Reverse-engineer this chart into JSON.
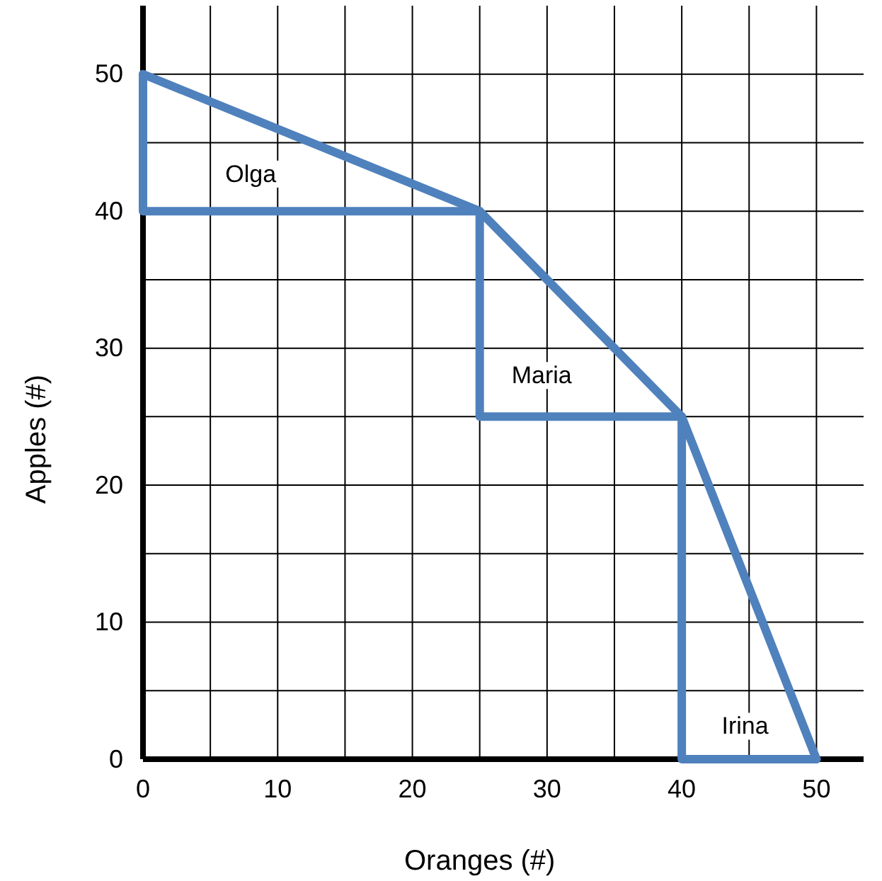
{
  "chart_data": {
    "type": "line",
    "xlabel": "Oranges (#)",
    "ylabel": "Apples (#)",
    "xlim": [
      0,
      53.5
    ],
    "ylim": [
      0,
      55
    ],
    "xticks": [
      0,
      {
        "value": 5,
        "label": null
      },
      10,
      {
        "value": 15,
        "label": null
      },
      20,
      {
        "value": 25,
        "label": null
      },
      30,
      {
        "value": 35,
        "label": null
      },
      40,
      {
        "value": 45,
        "label": null
      },
      50
    ],
    "yticks": [
      0,
      {
        "value": 5,
        "label": null
      },
      10,
      {
        "value": 15,
        "label": null
      },
      20,
      {
        "value": 25,
        "label": null
      },
      30,
      {
        "value": 35,
        "label": null
      },
      40,
      {
        "value": 45,
        "label": null
      },
      50
    ],
    "grid": true,
    "marker": "none",
    "line_style": "solid",
    "series": [
      {
        "color": "#4f81bd",
        "x": [
          0,
          25,
          40,
          50
        ],
        "values": [
          50,
          40,
          25,
          0
        ]
      },
      {
        "color": "#4f81bd",
        "x": [
          0,
          0,
          25
        ],
        "values": [
          50,
          40,
          40
        ]
      },
      {
        "color": "#4f81bd",
        "x": [
          25,
          25,
          40
        ],
        "values": [
          40,
          25,
          25
        ]
      },
      {
        "color": "#4f81bd",
        "x": [
          40,
          40,
          50
        ],
        "values": [
          25,
          0,
          0
        ]
      }
    ],
    "annotations": [
      "Olga",
      "Maria",
      "Irina"
    ]
  }
}
